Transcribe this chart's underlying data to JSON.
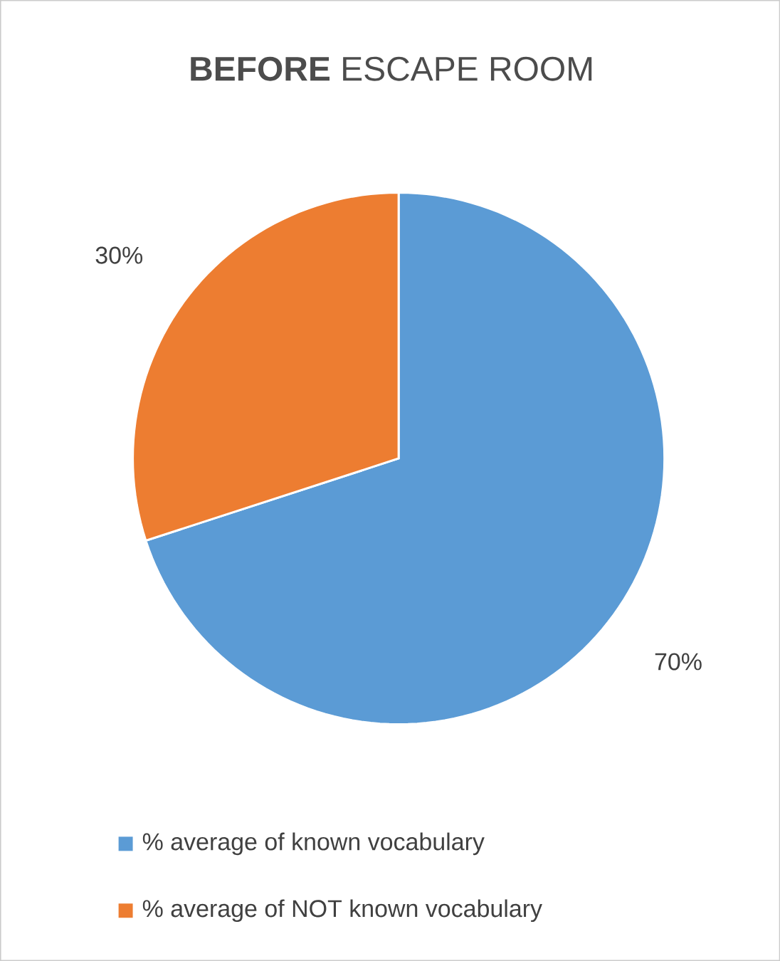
{
  "chart_data": {
    "type": "pie",
    "title": "**BEFORE** ESCAPE ROOM",
    "categories": [
      "% average of known vocabulary",
      "% average of NOT known vocabulary"
    ],
    "values": [
      70,
      30
    ],
    "colors": [
      "#5b9bd5",
      "#ed7d31"
    ],
    "value_labels": [
      "70%",
      "30%"
    ],
    "legend": "bottom"
  }
}
